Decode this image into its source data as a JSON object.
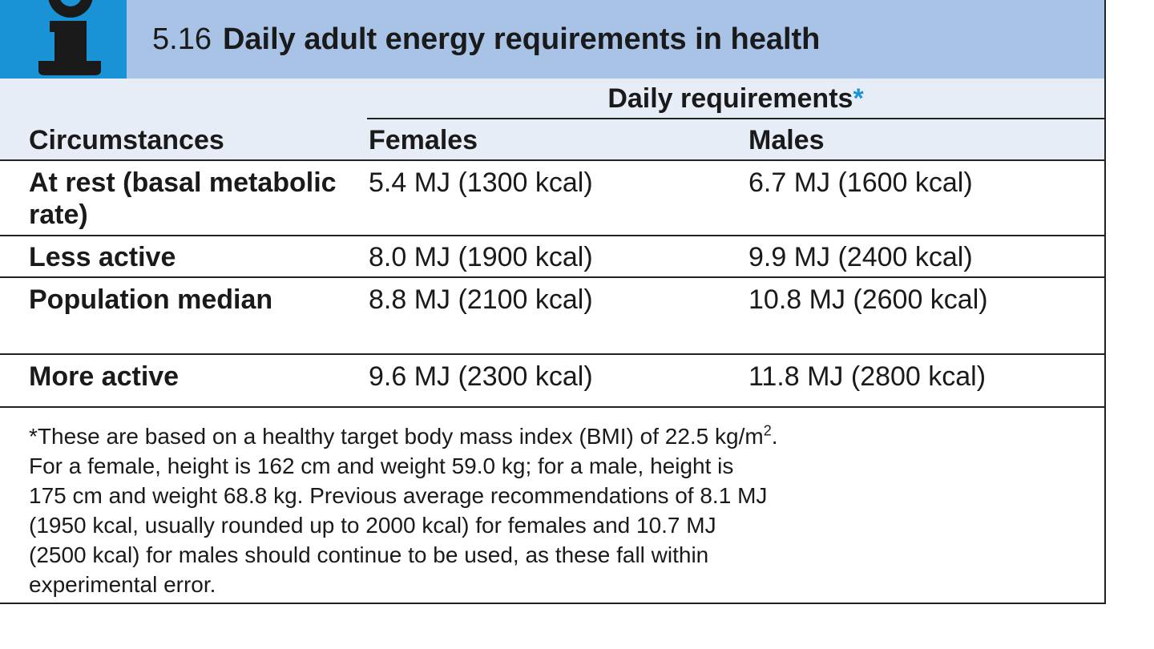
{
  "title": {
    "number": "5.16",
    "text": "Daily adult energy requirements in health",
    "icon": "info-i-icon",
    "icon_color": "#1a93d6",
    "bar_color": "#a9c3e6"
  },
  "table": {
    "group_header": "Daily requirements",
    "group_marker": "*",
    "columns": [
      "Circumstances",
      "Females",
      "Males"
    ],
    "rows": [
      {
        "circumstance": "At rest (basal metabolic rate)",
        "females": "5.4 MJ (1300 kcal)",
        "males": "6.7 MJ (1600 kcal)"
      },
      {
        "circumstance": "Less active",
        "females": "8.0 MJ (1900 kcal)",
        "males": "9.9 MJ (2400 kcal)"
      },
      {
        "circumstance": "Population median",
        "females": "8.8 MJ (2100 kcal)",
        "males": "10.8 MJ (2600 kcal)"
      },
      {
        "circumstance": "More active",
        "females": "9.6 MJ (2300 kcal)",
        "males": "11.8 MJ (2800 kcal)"
      }
    ]
  },
  "footnote": {
    "line1_pre": "*These are based on a healthy target body mass index (BMI) of 22.5 kg/m",
    "line1_sup": "2",
    "line1_post": ".",
    "line2": "For a female, height is 162 cm and weight 59.0 kg; for a male, height is",
    "line3": "175 cm and weight 68.8 kg. Previous average recommendations of 8.1 MJ",
    "line4": "(1950 kcal, usually rounded up to 2000 kcal) for females and 10.7 MJ",
    "line5": "(2500 kcal) for males should continue to be used, as these fall within",
    "line6": "experimental error."
  }
}
